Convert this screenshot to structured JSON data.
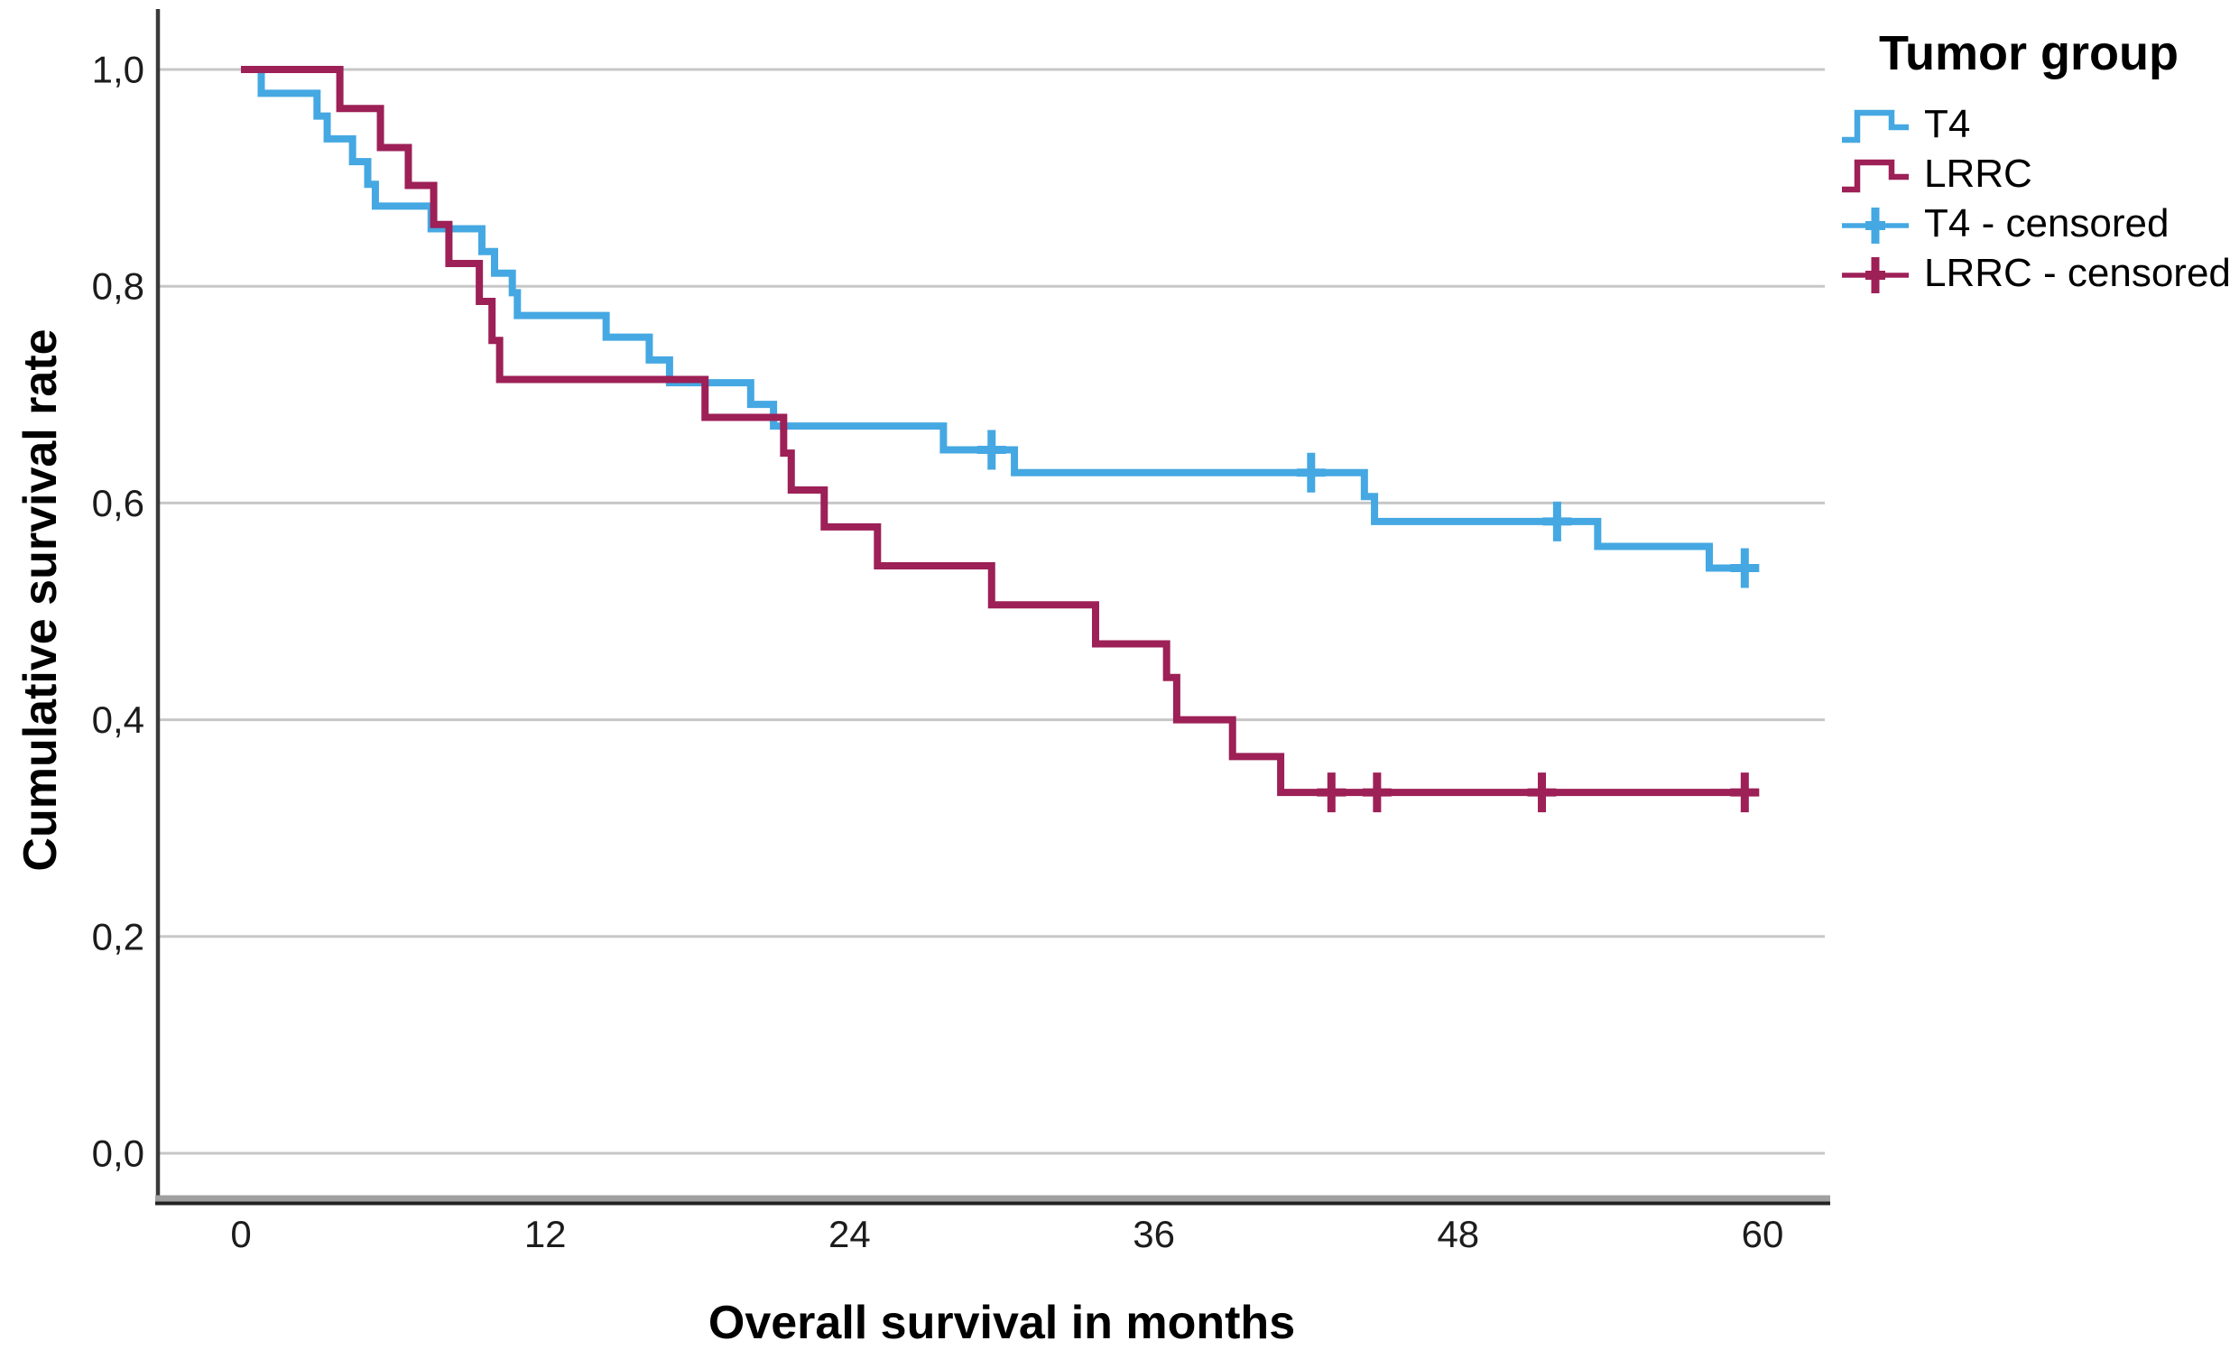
{
  "chart_data": {
    "type": "line",
    "variant": "kaplan_meier_step",
    "title": "",
    "xlabel": "Overall survival in months",
    "ylabel": "Cumulative survival rate",
    "xlim": [
      0,
      62.4
    ],
    "ylim": [
      0.0,
      1.0
    ],
    "grid": "horizontal_only",
    "xtick_values": [
      0,
      12,
      24,
      36,
      48,
      60
    ],
    "xtick_labels": [
      "0",
      "12",
      "24",
      "36",
      "48",
      "60"
    ],
    "ytick_values": [
      1.0,
      0.8,
      0.6,
      0.4,
      0.2,
      0.0
    ],
    "ytick_labels": [
      "1,0",
      "0,8",
      "0,6",
      "0,4",
      "0,2",
      "0,0"
    ],
    "colors": {
      "t4": "#45A8E2",
      "lrrc": "#9D2057",
      "gridline": "#c7c7c7",
      "axis_dark": "#222222",
      "axis_shadow": "#a0a0a0",
      "text": "#000000"
    },
    "legend": {
      "title": "Tumor group",
      "position": "top-right-outside",
      "entries": [
        {
          "label": "T4",
          "marker": "step-line",
          "color": "#45A8E2"
        },
        {
          "label": "LRRC",
          "marker": "step-line",
          "color": "#9D2057"
        },
        {
          "label": "T4 - censored",
          "marker": "plus-cross",
          "color": "#45A8E2"
        },
        {
          "label": "LRRC - censored",
          "marker": "plus-cross",
          "color": "#9D2057"
        }
      ]
    },
    "series": [
      {
        "name": "T4",
        "color": "#45A8E2",
        "end_time": 59.8,
        "steps": [
          [
            0,
            1.0
          ],
          [
            0.8,
            0.978
          ],
          [
            3.0,
            0.957
          ],
          [
            3.4,
            0.936
          ],
          [
            4.4,
            0.915
          ],
          [
            5.0,
            0.894
          ],
          [
            5.3,
            0.874
          ],
          [
            7.5,
            0.853
          ],
          [
            9.5,
            0.832
          ],
          [
            10.0,
            0.812
          ],
          [
            10.7,
            0.794
          ],
          [
            10.9,
            0.773
          ],
          [
            14.4,
            0.753
          ],
          [
            16.1,
            0.732
          ],
          [
            16.9,
            0.711
          ],
          [
            20.1,
            0.691
          ],
          [
            21.0,
            0.671
          ],
          [
            27.7,
            0.649
          ],
          [
            30.5,
            0.628
          ],
          [
            44.3,
            0.606
          ],
          [
            44.7,
            0.583
          ],
          [
            53.5,
            0.56
          ],
          [
            57.9,
            0.54
          ]
        ],
        "censored": [
          [
            29.6,
            0.649
          ],
          [
            42.2,
            0.628
          ],
          [
            51.9,
            0.583
          ],
          [
            59.3,
            0.54
          ]
        ]
      },
      {
        "name": "LRRC",
        "color": "#9D2057",
        "end_time": 59.8,
        "steps": [
          [
            0,
            1.0
          ],
          [
            3.9,
            0.964
          ],
          [
            5.5,
            0.928
          ],
          [
            6.6,
            0.893
          ],
          [
            7.6,
            0.857
          ],
          [
            8.2,
            0.821
          ],
          [
            9.4,
            0.786
          ],
          [
            9.9,
            0.75
          ],
          [
            10.2,
            0.714
          ],
          [
            18.3,
            0.679
          ],
          [
            21.4,
            0.646
          ],
          [
            21.7,
            0.612
          ],
          [
            23.0,
            0.578
          ],
          [
            25.1,
            0.542
          ],
          [
            29.6,
            0.506
          ],
          [
            33.7,
            0.47
          ],
          [
            36.5,
            0.439
          ],
          [
            36.9,
            0.4
          ],
          [
            39.1,
            0.366
          ],
          [
            41.0,
            0.333
          ]
        ],
        "censored": [
          [
            43.0,
            0.333
          ],
          [
            44.8,
            0.333
          ],
          [
            51.3,
            0.333
          ],
          [
            59.3,
            0.333
          ]
        ]
      }
    ]
  }
}
